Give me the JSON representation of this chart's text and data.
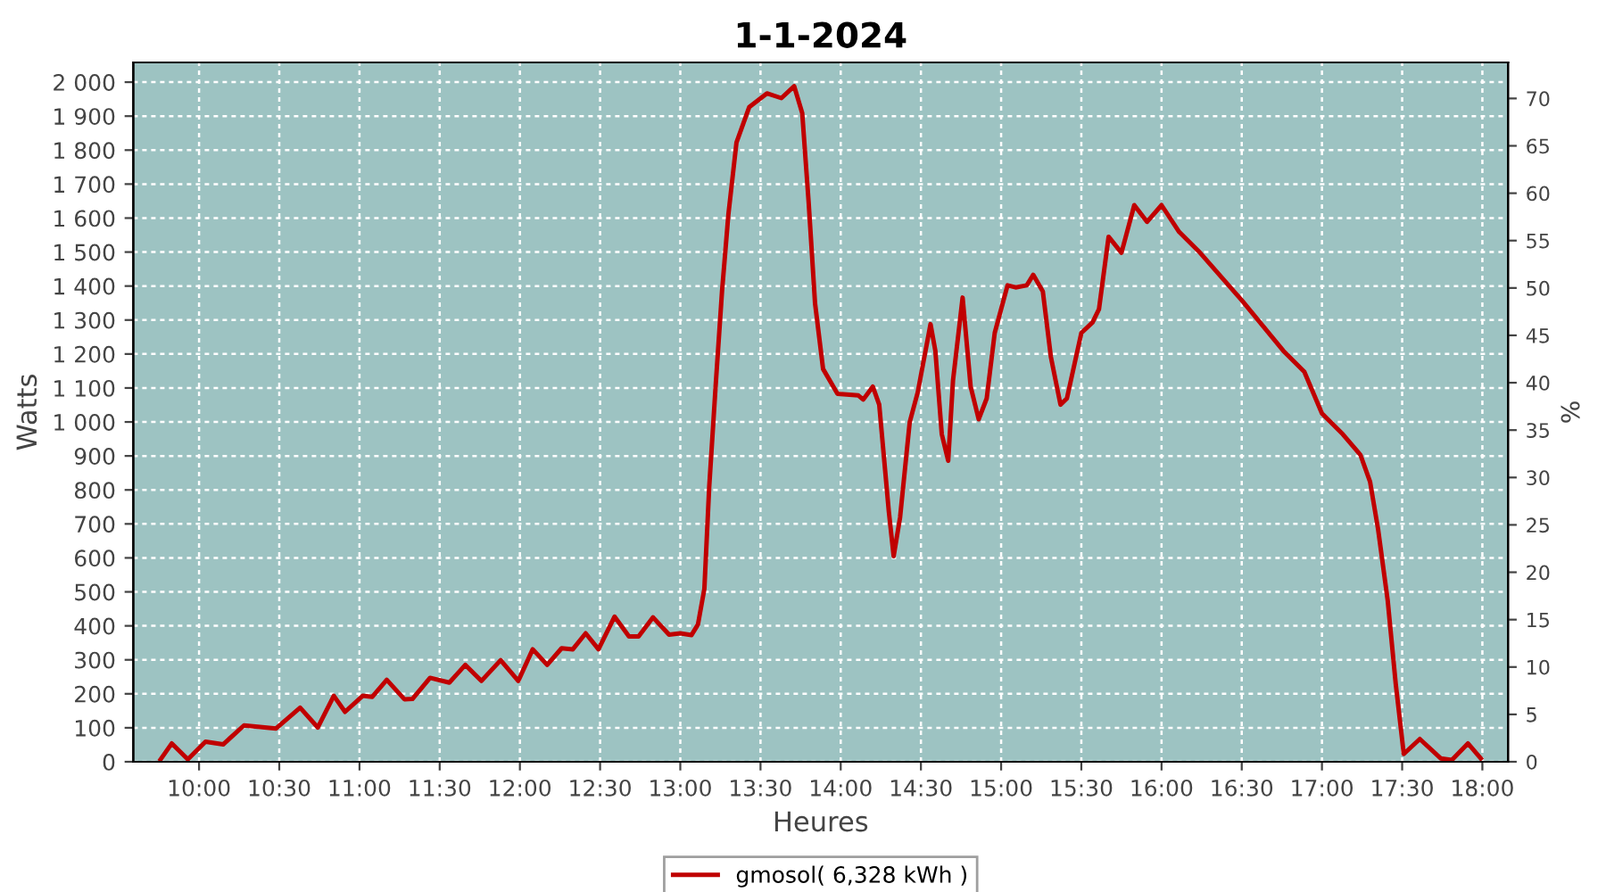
{
  "chart_data": {
    "type": "line",
    "title": "1-1-2024",
    "xlabel": "Heures",
    "ylabel": "Watts",
    "y2label": "%",
    "xlim": [
      9.59,
      18.16
    ],
    "ylim": [
      0,
      2058
    ],
    "y2lim": [
      0,
      73.8
    ],
    "xticks": [
      {
        "value": 10,
        "label": "10:00"
      },
      {
        "value": 10.5,
        "label": "10:30"
      },
      {
        "value": 11,
        "label": "11:00"
      },
      {
        "value": 11.5,
        "label": "11:30"
      },
      {
        "value": 12,
        "label": "12:00"
      },
      {
        "value": 12.5,
        "label": "12:30"
      },
      {
        "value": 13,
        "label": "13:00"
      },
      {
        "value": 13.5,
        "label": "13:30"
      },
      {
        "value": 14,
        "label": "14:00"
      },
      {
        "value": 14.5,
        "label": "14:30"
      },
      {
        "value": 15,
        "label": "15:00"
      },
      {
        "value": 15.5,
        "label": "15:30"
      },
      {
        "value": 16,
        "label": "16:00"
      },
      {
        "value": 16.5,
        "label": "16:30"
      },
      {
        "value": 17,
        "label": "17:00"
      },
      {
        "value": 17.5,
        "label": "17:30"
      },
      {
        "value": 18,
        "label": "18:00"
      }
    ],
    "yticks": [
      0,
      100,
      200,
      300,
      400,
      500,
      600,
      700,
      800,
      900,
      {
        "value": 1000,
        "label": "1 000"
      },
      {
        "value": 1100,
        "label": "1 100"
      },
      {
        "value": 1200,
        "label": "1 200"
      },
      {
        "value": 1300,
        "label": "1 300"
      },
      {
        "value": 1400,
        "label": "1 400"
      },
      {
        "value": 1500,
        "label": "1 500"
      },
      {
        "value": 1600,
        "label": "1 600"
      },
      {
        "value": 1700,
        "label": "1 700"
      },
      {
        "value": 1800,
        "label": "1 800"
      },
      {
        "value": 1900,
        "label": "1 900"
      },
      {
        "value": 2000,
        "label": "2 000"
      }
    ],
    "y2ticks": [
      0,
      5,
      10,
      15,
      20,
      25,
      30,
      35,
      40,
      45,
      50,
      55,
      60,
      65,
      70
    ],
    "grid": true,
    "legend": "bottom",
    "line_style": "solid",
    "marker": "none",
    "series": [
      {
        "name": "gmosol( 6,328 kWh )",
        "color": "#c00000",
        "x": [
          9.76,
          9.83,
          9.93,
          10.04,
          10.15,
          10.28,
          10.48,
          10.63,
          10.74,
          10.84,
          10.91,
          11.02,
          11.08,
          11.17,
          11.28,
          11.33,
          11.44,
          11.56,
          11.66,
          11.76,
          11.88,
          11.99,
          12.08,
          12.17,
          12.26,
          12.33,
          12.41,
          12.49,
          12.59,
          12.68,
          12.74,
          12.83,
          12.93,
          13.0,
          13.07,
          13.11,
          13.15,
          13.18,
          13.22,
          13.26,
          13.3,
          13.35,
          13.43,
          13.54,
          13.63,
          13.71,
          13.76,
          13.8,
          13.84,
          13.89,
          13.98,
          14.11,
          14.14,
          14.2,
          14.24,
          14.3,
          14.33,
          14.37,
          14.43,
          14.48,
          14.56,
          14.59,
          14.63,
          14.67,
          14.7,
          14.76,
          14.81,
          14.86,
          14.91,
          14.96,
          15.04,
          15.09,
          15.16,
          15.2,
          15.26,
          15.31,
          15.37,
          15.41,
          15.5,
          15.57,
          15.61,
          15.67,
          15.75,
          15.83,
          15.91,
          16.0,
          16.11,
          16.24,
          16.5,
          16.76,
          16.89,
          17.0,
          17.13,
          17.24,
          17.3,
          17.35,
          17.41,
          17.46,
          17.51,
          17.61,
          17.74,
          17.81,
          17.91,
          17.99
        ],
        "values": [
          7,
          54,
          7,
          59,
          51,
          107,
          98,
          159,
          101,
          194,
          147,
          194,
          191,
          241,
          184,
          185,
          247,
          233,
          285,
          238,
          299,
          238,
          331,
          285,
          334,
          331,
          378,
          331,
          427,
          369,
          369,
          425,
          374,
          378,
          373,
          404,
          509,
          807,
          1104,
          1384,
          1612,
          1822,
          1927,
          1967,
          1953,
          1988,
          1909,
          1647,
          1349,
          1156,
          1083,
          1078,
          1066,
          1104,
          1051,
          736,
          605,
          719,
          999,
          1087,
          1288,
          1209,
          964,
          886,
          1122,
          1366,
          1104,
          1008,
          1069,
          1262,
          1402,
          1396,
          1402,
          1433,
          1384,
          1192,
          1051,
          1069,
          1262,
          1293,
          1332,
          1545,
          1498,
          1638,
          1589,
          1638,
          1559,
          1498,
          1358,
          1209,
          1148,
          1025,
          964,
          903,
          824,
          684,
          474,
          229,
          23,
          67,
          10,
          5,
          54,
          10
        ]
      }
    ]
  }
}
